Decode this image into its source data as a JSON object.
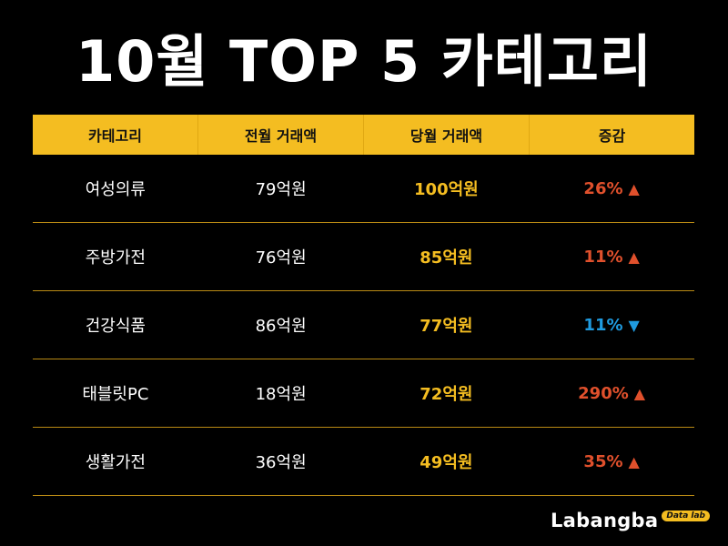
{
  "title": "10월 TOP 5 카테고리",
  "chart_data": {
    "type": "table",
    "title": "10월 TOP 5 카테고리",
    "columns": [
      "카테고리",
      "전월 거래액",
      "당월 거래액",
      "증감"
    ],
    "rows": [
      {
        "category": "여성의류",
        "prev": "79억원",
        "curr": "100억원",
        "change": "26%",
        "direction": "up",
        "arrow": "▲"
      },
      {
        "category": "주방가전",
        "prev": "76억원",
        "curr": "85억원",
        "change": "11%",
        "direction": "up",
        "arrow": "▲"
      },
      {
        "category": "건강식품",
        "prev": "86억원",
        "curr": "77억원",
        "change": "11%",
        "direction": "down",
        "arrow": "▼"
      },
      {
        "category": "태블릿PC",
        "prev": "18억원",
        "curr": "72억원",
        "change": "290%",
        "direction": "up",
        "arrow": "▲"
      },
      {
        "category": "생활가전",
        "prev": "36억원",
        "curr": "49억원",
        "change": "35%",
        "direction": "up",
        "arrow": "▲"
      }
    ]
  },
  "logo": {
    "text": "Labangba",
    "badge": "Data lab"
  },
  "colors": {
    "accent": "#f4bd21",
    "up": "#e0502c",
    "down": "#1f9be0",
    "background": "#000000"
  }
}
